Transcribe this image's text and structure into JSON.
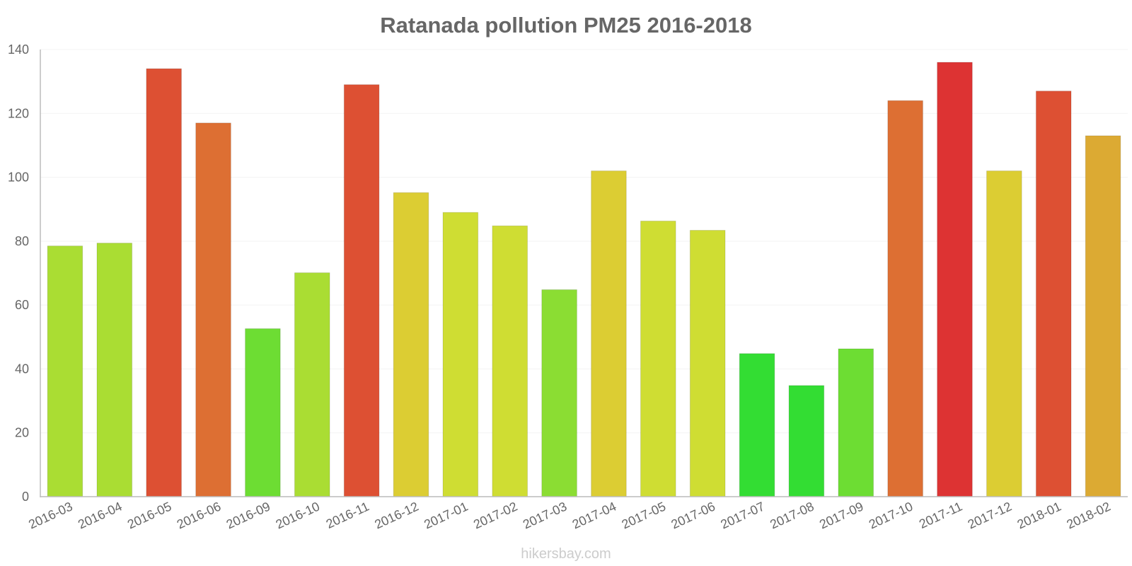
{
  "chart_data": {
    "type": "bar",
    "title": "Ratanada pollution PM25 2016-2018",
    "xlabel": "",
    "ylabel": "",
    "ylim": [
      0,
      140
    ],
    "y_ticks": [
      0,
      20,
      40,
      60,
      80,
      100,
      120,
      140
    ],
    "grid": true,
    "categories": [
      "2016-03",
      "2016-04",
      "2016-05",
      "2016-06",
      "2016-09",
      "2016-10",
      "2016-11",
      "2016-12",
      "2017-01",
      "2017-02",
      "2017-03",
      "2017-04",
      "2017-05",
      "2017-06",
      "2017-07",
      "2017-08",
      "2017-09",
      "2017-10",
      "2017-11",
      "2017-12",
      "2018-01",
      "2018-02"
    ],
    "values": [
      78.5,
      79.4,
      134,
      117,
      52.6,
      70.1,
      129,
      95.2,
      89,
      84.8,
      64.8,
      102,
      86.3,
      83.4,
      44.8,
      34.8,
      46.3,
      124,
      136,
      102,
      127,
      113
    ],
    "colors": [
      "#aadd33",
      "#aadd33",
      "#dd5033",
      "#dd6f33",
      "#6ddd33",
      "#aadd33",
      "#dd5033",
      "#dccd33",
      "#cfdd33",
      "#cfdd33",
      "#8bdd33",
      "#dccd33",
      "#cfdd33",
      "#cfdd33",
      "#33dd33",
      "#33dd33",
      "#6ddd33",
      "#dd6f33",
      "#dd3333",
      "#dccd33",
      "#dd5033",
      "#dcaa33"
    ]
  },
  "watermark": "hikersbay.com"
}
